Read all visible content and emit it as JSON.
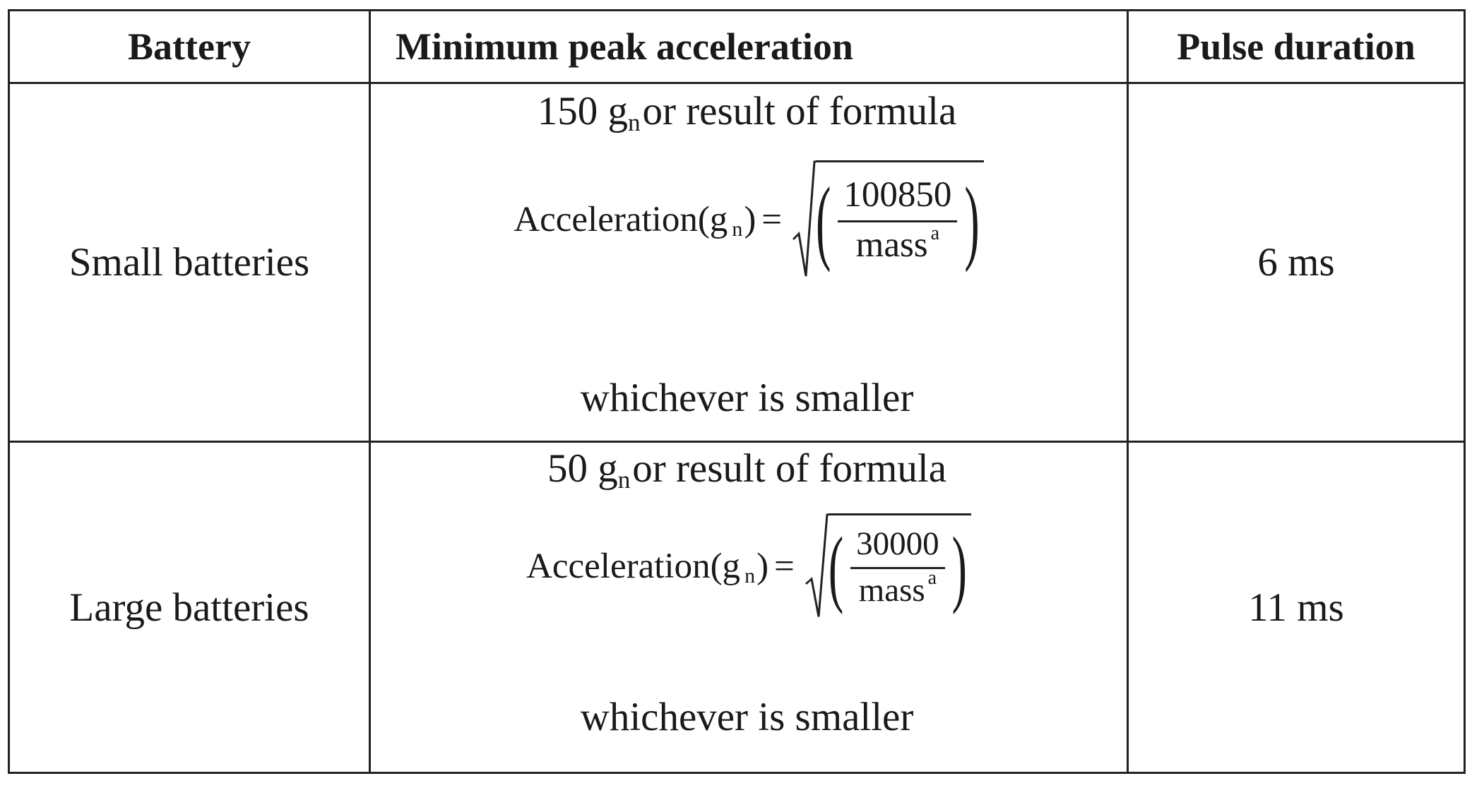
{
  "table": {
    "headers": {
      "battery": "Battery",
      "acceleration": "Minimum peak acceleration",
      "pulse": "Pulse duration"
    },
    "rows": [
      {
        "battery": "Small batteries",
        "accel_prefix": "150 g",
        "accel_prefix_sub": "n",
        "accel_suffix": "or result of formula",
        "formula_label": "Acceleration(g",
        "formula_label_sub": "n",
        "formula_label_close": ")",
        "formula_eq": "=",
        "numerator": "100850",
        "denominator": "mass",
        "denominator_sup": "a",
        "note": "whichever is smaller",
        "pulse": "6 ms"
      },
      {
        "battery": "Large batteries",
        "accel_prefix": "50 g",
        "accel_prefix_sub": "n",
        "accel_suffix": "or result of formula",
        "formula_label": "Acceleration(g",
        "formula_label_sub": "n",
        "formula_label_close": ")",
        "formula_eq": "=",
        "numerator": "30000",
        "denominator": "mass",
        "denominator_sup": "a",
        "note": "whichever is smaller",
        "pulse": "11 ms"
      }
    ]
  }
}
